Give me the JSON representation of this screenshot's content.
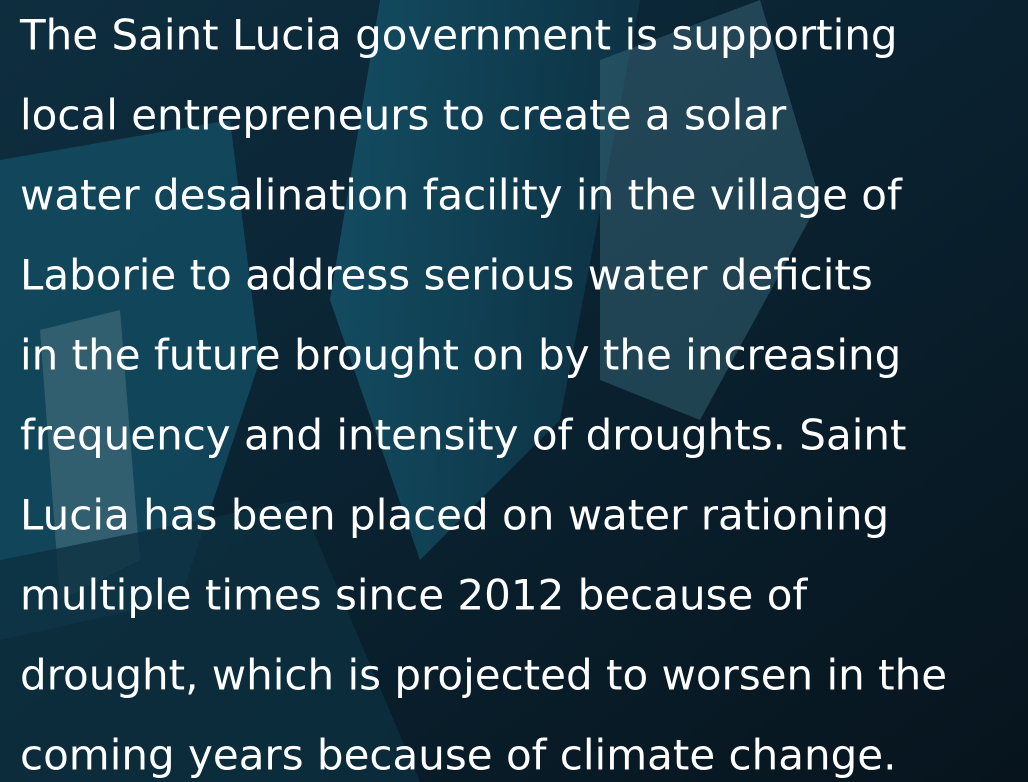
{
  "text": {
    "lines": [
      "The Saint Lucia government is supporting",
      "local entrepreneurs to create a solar",
      "water desalination facility in the village of",
      "Laborie to address serious water deficits",
      "in the future brought on by the increasing",
      "frequency and intensity of droughts. Saint",
      "Lucia has been placed on water rationing",
      "multiple times since 2012 because of",
      "drought, which is projected to worsen in the",
      "coming years because of climate change."
    ]
  }
}
